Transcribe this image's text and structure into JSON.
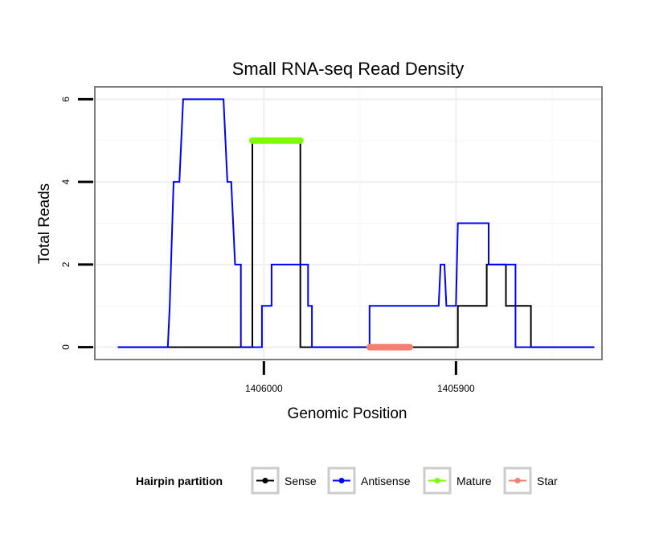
{
  "chart_data": {
    "type": "line",
    "title": "Small RNA-seq Read Density",
    "xlabel": "Genomic Position",
    "ylabel": "Total Reads",
    "x_reversed": true,
    "xlim": [
      1406088,
      1405824
    ],
    "ylim": [
      -0.3,
      6.3
    ],
    "x_ticks": [
      1406000,
      1405900
    ],
    "x_tick_labels": [
      "1406000",
      "1405900"
    ],
    "y_ticks": [
      0,
      2,
      4,
      6
    ],
    "y_tick_labels": [
      "0",
      "2",
      "4",
      "6"
    ],
    "grid": true,
    "legend_position": "bottom",
    "legend_title": "Hairpin partition",
    "colors": {
      "Sense": "#000000",
      "Antisense": "#0000ff",
      "Mature": "#7cfc00",
      "Star": "#f08070"
    },
    "series": [
      {
        "name": "Sense",
        "x": [
          1406076,
          1406006,
          1406006,
          1405981,
          1405981,
          1405899,
          1405899,
          1405884,
          1405884,
          1405874,
          1405874,
          1405861,
          1405861,
          1405849,
          1405849,
          1405828
        ],
        "y": [
          0,
          0,
          5,
          5,
          0,
          0,
          1,
          1,
          2,
          2,
          1,
          1,
          0,
          0,
          0,
          0
        ]
      },
      {
        "name": "Antisense",
        "x": [
          1406076,
          1406050,
          1406049,
          1406047,
          1406045,
          1406044,
          1406042,
          1406035,
          1406021,
          1406019,
          1406017,
          1406015,
          1406012,
          1406012,
          1406001,
          1406001,
          1405996,
          1405996,
          1405990,
          1405990,
          1405977,
          1405977,
          1405975,
          1405975,
          1405972,
          1405945,
          1405945,
          1405909,
          1405908,
          1405906,
          1405905,
          1405900,
          1405899,
          1405899,
          1405883,
          1405883,
          1405873,
          1405869,
          1405869,
          1405828
        ],
        "y": [
          0,
          0,
          1,
          4,
          4,
          4,
          6,
          6,
          6,
          4,
          4,
          2,
          2,
          0,
          0,
          1,
          1,
          2,
          2,
          2,
          2,
          1,
          1,
          0,
          0,
          0,
          1,
          1,
          2,
          2,
          1,
          1,
          3,
          3,
          3,
          2,
          2,
          2,
          0,
          0
        ]
      }
    ],
    "segments": [
      {
        "name": "Mature",
        "x": [
          1406006,
          1405981
        ],
        "y": 5
      },
      {
        "name": "Star",
        "x": [
          1405945,
          1405924
        ],
        "y": 0
      }
    ]
  }
}
